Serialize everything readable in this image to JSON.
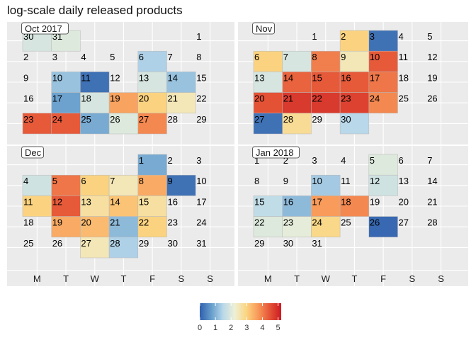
{
  "chart_data": {
    "type": "heatmap",
    "title": "log-scale daily released products",
    "weekday_labels": [
      "M",
      "T",
      "W",
      "T",
      "F",
      "S",
      "S"
    ],
    "legend": {
      "ticks": [
        "0",
        "1",
        "2",
        "3",
        "4",
        "5"
      ],
      "range": [
        0,
        5.2
      ],
      "colors": [
        "#3060ad",
        "#679ecc",
        "#b8d8ea",
        "#eef0d6",
        "#fbd581",
        "#f89a5a",
        "#e55537",
        "#cc1a23"
      ]
    },
    "months": [
      {
        "label": "Oct 2017",
        "weeks": [
          [
            30,
            31,
            null,
            null,
            null,
            null,
            1
          ],
          [
            2,
            3,
            4,
            5,
            6,
            7,
            8
          ],
          [
            9,
            10,
            11,
            12,
            13,
            14,
            15
          ],
          [
            16,
            17,
            18,
            19,
            20,
            21,
            22
          ],
          [
            23,
            24,
            25,
            26,
            27,
            28,
            29
          ]
        ],
        "values": [
          [
            1.9,
            2.0,
            null,
            null,
            null,
            null,
            null
          ],
          [
            null,
            null,
            null,
            null,
            1.4,
            null,
            null
          ],
          [
            null,
            1.2,
            0.2,
            null,
            1.9,
            1.2,
            null
          ],
          [
            null,
            0.8,
            1.9,
            3.6,
            3.0,
            2.5,
            null
          ],
          [
            4.4,
            4.4,
            0.9,
            2.0,
            3.9,
            null,
            null
          ]
        ]
      },
      {
        "label": "Nov",
        "weeks": [
          [
            null,
            null,
            1,
            2,
            3,
            4,
            5
          ],
          [
            6,
            7,
            8,
            9,
            10,
            11,
            12
          ],
          [
            13,
            14,
            15,
            16,
            17,
            18,
            19
          ],
          [
            20,
            21,
            22,
            23,
            24,
            25,
            26
          ],
          [
            27,
            28,
            29,
            30,
            null,
            null,
            null
          ]
        ],
        "values": [
          [
            null,
            null,
            null,
            3.0,
            0.2,
            null,
            null
          ],
          [
            3.0,
            1.9,
            4.0,
            2.5,
            4.4,
            null,
            null
          ],
          [
            1.9,
            4.3,
            4.4,
            4.4,
            4.1,
            null,
            null
          ],
          [
            4.5,
            4.8,
            4.8,
            4.7,
            3.9,
            null,
            null
          ],
          [
            0.2,
            2.8,
            null,
            1.5,
            null,
            null,
            null
          ]
        ]
      },
      {
        "label": "Dec",
        "weeks": [
          [
            null,
            null,
            null,
            null,
            1,
            2,
            3
          ],
          [
            4,
            5,
            6,
            7,
            8,
            9,
            10
          ],
          [
            11,
            12,
            13,
            14,
            15,
            16,
            17
          ],
          [
            18,
            19,
            20,
            21,
            22,
            23,
            24
          ],
          [
            25,
            26,
            27,
            28,
            29,
            30,
            31
          ]
        ],
        "values": [
          [
            null,
            null,
            null,
            null,
            0.9,
            null,
            null
          ],
          [
            1.8,
            4.1,
            3.0,
            2.5,
            3.5,
            0.2,
            null
          ],
          [
            3.0,
            4.4,
            2.7,
            3.2,
            2.7,
            null,
            null
          ],
          [
            null,
            3.5,
            3.3,
            1.1,
            3.0,
            null,
            null
          ],
          [
            null,
            null,
            2.5,
            1.4,
            null,
            null,
            null
          ]
        ]
      },
      {
        "label": "Jan 2018",
        "weeks": [
          [
            1,
            2,
            3,
            4,
            5,
            6,
            7
          ],
          [
            8,
            9,
            10,
            11,
            12,
            13,
            14
          ],
          [
            15,
            16,
            17,
            18,
            19,
            20,
            21
          ],
          [
            22,
            23,
            24,
            25,
            26,
            27,
            28
          ],
          [
            29,
            30,
            31,
            null,
            null,
            null,
            null
          ]
        ],
        "values": [
          [
            null,
            null,
            null,
            null,
            2.0,
            null,
            null
          ],
          [
            null,
            null,
            1.3,
            null,
            1.8,
            null,
            null
          ],
          [
            1.6,
            1.1,
            3.7,
            3.9,
            null,
            null,
            null
          ],
          [
            2.0,
            2.1,
            2.9,
            null,
            0.1,
            null,
            null
          ],
          [
            null,
            null,
            null,
            null,
            null,
            null,
            null
          ]
        ]
      }
    ]
  }
}
